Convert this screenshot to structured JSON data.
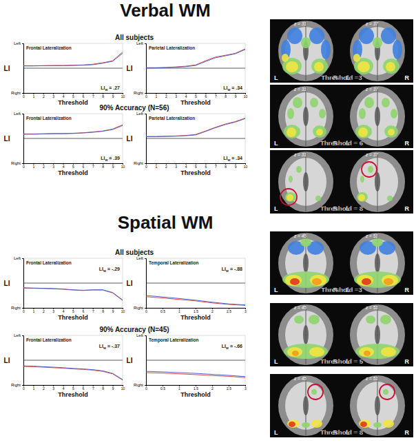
{
  "chart_data": [
    {
      "type": "line",
      "title": "Frontal Lateralization",
      "annotation": "LIw = .27",
      "xlabel": "Threshold",
      "ylabel": "LI",
      "x": [
        0,
        1,
        2,
        3,
        4,
        5,
        6,
        7,
        8,
        9,
        10
      ],
      "xlim": [
        0,
        10
      ],
      "xticks": [
        0,
        1,
        2,
        3,
        4,
        5,
        6,
        7,
        8,
        9,
        10
      ],
      "ylim": [
        -1,
        1
      ],
      "yticks": [
        {
          "value": 1,
          "label": "Left"
        },
        {
          "value": -1,
          "label": "Right"
        }
      ],
      "series": [
        {
          "color": "#d9342b",
          "values": [
            0.1,
            0.1,
            0.1,
            0.11,
            0.11,
            0.12,
            0.13,
            0.16,
            0.22,
            0.3,
            0.65
          ]
        },
        {
          "color": "#3a55c8",
          "values": [
            0.09,
            0.09,
            0.1,
            0.1,
            0.1,
            0.11,
            0.12,
            0.14,
            0.2,
            0.28,
            0.6
          ]
        }
      ]
    },
    {
      "type": "line",
      "title": "Parietal Lateralization",
      "annotation": "LIw = .34",
      "xlabel": "Threshold",
      "ylabel": "LI",
      "x": [
        0,
        1,
        2,
        3,
        4,
        5,
        6,
        7,
        8,
        9,
        10
      ],
      "xlim": [
        0,
        10
      ],
      "xticks": [
        0,
        1,
        2,
        3,
        4,
        5,
        6,
        7,
        8,
        9,
        10
      ],
      "ylim": [
        -1,
        1
      ],
      "yticks": [
        {
          "value": 1,
          "label": "Left"
        },
        {
          "value": -1,
          "label": "Right"
        }
      ],
      "series": [
        {
          "color": "#d9342b",
          "values": [
            0.02,
            0.02,
            0.03,
            0.05,
            0.08,
            0.13,
            0.3,
            0.45,
            0.52,
            0.6,
            0.78
          ]
        },
        {
          "color": "#3a55c8",
          "values": [
            0.01,
            0.01,
            0.02,
            0.04,
            0.06,
            0.11,
            0.27,
            0.42,
            0.5,
            0.58,
            0.75
          ]
        }
      ]
    },
    {
      "type": "line",
      "title": "Frontal Lateralization",
      "annotation": "LIw = .39",
      "xlabel": "Threshold",
      "ylabel": "LI",
      "x": [
        0,
        1,
        2,
        3,
        4,
        5,
        6,
        7,
        8,
        9,
        10
      ],
      "xlim": [
        0,
        10
      ],
      "xticks": [
        0,
        1,
        2,
        3,
        4,
        5,
        6,
        7,
        8,
        9,
        10
      ],
      "ylim": [
        -1,
        1
      ],
      "yticks": [
        {
          "value": 1,
          "label": "Left"
        },
        {
          "value": -1,
          "label": "Right"
        }
      ],
      "series": [
        {
          "color": "#d9342b",
          "values": [
            0.18,
            0.18,
            0.19,
            0.2,
            0.2,
            0.21,
            0.23,
            0.26,
            0.3,
            0.38,
            0.55
          ]
        },
        {
          "color": "#3a55c8",
          "values": [
            0.17,
            0.17,
            0.18,
            0.19,
            0.19,
            0.2,
            0.22,
            0.25,
            0.29,
            0.36,
            0.52
          ]
        }
      ]
    },
    {
      "type": "line",
      "title": "Parietal Lateralization",
      "annotation": "LIw = .34",
      "xlabel": "Threshold",
      "ylabel": "LI",
      "x": [
        0,
        1,
        2,
        3,
        4,
        5,
        6,
        7,
        8,
        9,
        10
      ],
      "xlim": [
        0,
        10
      ],
      "xticks": [
        0,
        1,
        2,
        3,
        4,
        5,
        6,
        7,
        8,
        9,
        10
      ],
      "ylim": [
        -1,
        1
      ],
      "yticks": [
        {
          "value": 1,
          "label": "Left"
        },
        {
          "value": -1,
          "label": "Right"
        }
      ],
      "series": [
        {
          "color": "#d9342b",
          "values": [
            0.08,
            0.08,
            0.09,
            0.1,
            0.12,
            0.16,
            0.3,
            0.45,
            0.58,
            0.68,
            0.82
          ]
        },
        {
          "color": "#3a55c8",
          "values": [
            0.07,
            0.07,
            0.08,
            0.09,
            0.11,
            0.14,
            0.28,
            0.43,
            0.56,
            0.66,
            0.8
          ]
        }
      ]
    },
    {
      "type": "line",
      "title": "Frontal Lateralization",
      "annotation": "LIw = -.29",
      "xlabel": "Threshold",
      "ylabel": "LI",
      "x": [
        0,
        1,
        2,
        3,
        4,
        5,
        6,
        7,
        8,
        9,
        10
      ],
      "xlim": [
        0,
        10
      ],
      "xticks": [
        0,
        1,
        2,
        3,
        4,
        5,
        6,
        7,
        8,
        9,
        10
      ],
      "ylim": [
        -1,
        1
      ],
      "yticks": [
        {
          "value": 1,
          "label": "Left"
        },
        {
          "value": -1,
          "label": "Right"
        }
      ],
      "series": [
        {
          "color": "#d9342b",
          "values": [
            -0.2,
            -0.21,
            -0.22,
            -0.23,
            -0.25,
            -0.28,
            -0.3,
            -0.28,
            -0.28,
            -0.4,
            -0.7
          ]
        },
        {
          "color": "#3a55c8",
          "values": [
            -0.19,
            -0.2,
            -0.21,
            -0.22,
            -0.24,
            -0.27,
            -0.29,
            -0.27,
            -0.27,
            -0.38,
            -0.68
          ]
        }
      ]
    },
    {
      "type": "line",
      "title": "Temporal Lateralization",
      "annotation": "LIw = -.88",
      "xlabel": "Threshold",
      "ylabel": "LI",
      "x": [
        0,
        0.5,
        1,
        1.5,
        2,
        2.5,
        3
      ],
      "xlim": [
        0,
        3
      ],
      "xticks": [
        0,
        0.5,
        1,
        1.5,
        2,
        2.5,
        3
      ],
      "ylim": [
        -1,
        1
      ],
      "yticks": [
        {
          "value": 1,
          "label": "Left"
        },
        {
          "value": -1,
          "label": "Right"
        }
      ],
      "series": [
        {
          "color": "#d9342b",
          "values": [
            -0.55,
            -0.6,
            -0.66,
            -0.72,
            -0.8,
            -0.86,
            -0.9
          ]
        },
        {
          "color": "#3a55c8",
          "values": [
            -0.5,
            -0.56,
            -0.62,
            -0.69,
            -0.77,
            -0.84,
            -0.88
          ]
        }
      ]
    },
    {
      "type": "line",
      "title": "Frontal Lateralization",
      "annotation": "LIw = -.37",
      "xlabel": "Threshold",
      "ylabel": "LI",
      "x": [
        0,
        1,
        2,
        3,
        4,
        5,
        6,
        7,
        8,
        9,
        10
      ],
      "xlim": [
        0,
        10
      ],
      "xticks": [
        0,
        1,
        2,
        3,
        4,
        5,
        6,
        7,
        8,
        9,
        10
      ],
      "ylim": [
        -1,
        1
      ],
      "yticks": [
        {
          "value": 1,
          "label": "Left"
        },
        {
          "value": -1,
          "label": "Right"
        }
      ],
      "series": [
        {
          "color": "#d9342b",
          "values": [
            -0.25,
            -0.26,
            -0.28,
            -0.3,
            -0.32,
            -0.35,
            -0.37,
            -0.4,
            -0.45,
            -0.55,
            -0.8
          ]
        },
        {
          "color": "#3a55c8",
          "values": [
            -0.23,
            -0.24,
            -0.26,
            -0.28,
            -0.3,
            -0.33,
            -0.35,
            -0.38,
            -0.43,
            -0.53,
            -0.78
          ]
        }
      ]
    },
    {
      "type": "line",
      "title": "Temporal Lateralization",
      "annotation": "LIw = -.66",
      "xlabel": "Threshold",
      "ylabel": "LI",
      "x": [
        0,
        0.5,
        1,
        1.5,
        2,
        2.5,
        3
      ],
      "xlim": [
        0,
        3
      ],
      "xticks": [
        0,
        0.5,
        1,
        1.5,
        2,
        2.5,
        3
      ],
      "ylim": [
        -1,
        1
      ],
      "yticks": [
        {
          "value": 1,
          "label": "Left"
        },
        {
          "value": -1,
          "label": "Right"
        }
      ],
      "series": [
        {
          "color": "#d9342b",
          "values": [
            -0.5,
            -0.52,
            -0.55,
            -0.58,
            -0.62,
            -0.65,
            -0.7
          ]
        },
        {
          "color": "#3a55c8",
          "values": [
            -0.45,
            -0.47,
            -0.5,
            -0.53,
            -0.57,
            -0.61,
            -0.66
          ]
        }
      ]
    }
  ],
  "section_titles": [
    "Verbal WM",
    "Spatial WM"
  ],
  "group_labels": [
    "All subjects",
    "90% Accuracy (N=56)",
    "All subjects",
    "90% Accuracy (N=45)"
  ],
  "brain_panels": [
    {
      "slices": [
        "z = 31",
        "z = 37"
      ],
      "threshold": "Threshold =3",
      "left": "L",
      "right": "R"
    },
    {
      "slices": [
        "z = 31",
        "z = 37"
      ],
      "threshold": "Threshold = 6",
      "left": "L",
      "right": "R"
    },
    {
      "slices": [
        "z = 31",
        "z = 37"
      ],
      "threshold": "Threshold = 8",
      "left": "L",
      "right": "R"
    },
    {
      "slices": [
        "z = 45",
        "z = 51"
      ],
      "threshold": "Threshold =3",
      "left": "L",
      "right": "R"
    },
    {
      "slices": [
        "z = 45",
        "z = 51"
      ],
      "threshold": "Threshold = 5",
      "left": "L",
      "right": "R"
    },
    {
      "slices": [
        "z = 45",
        "z = 51"
      ],
      "threshold": "Threshold = 8",
      "left": "L",
      "right": "R"
    }
  ]
}
